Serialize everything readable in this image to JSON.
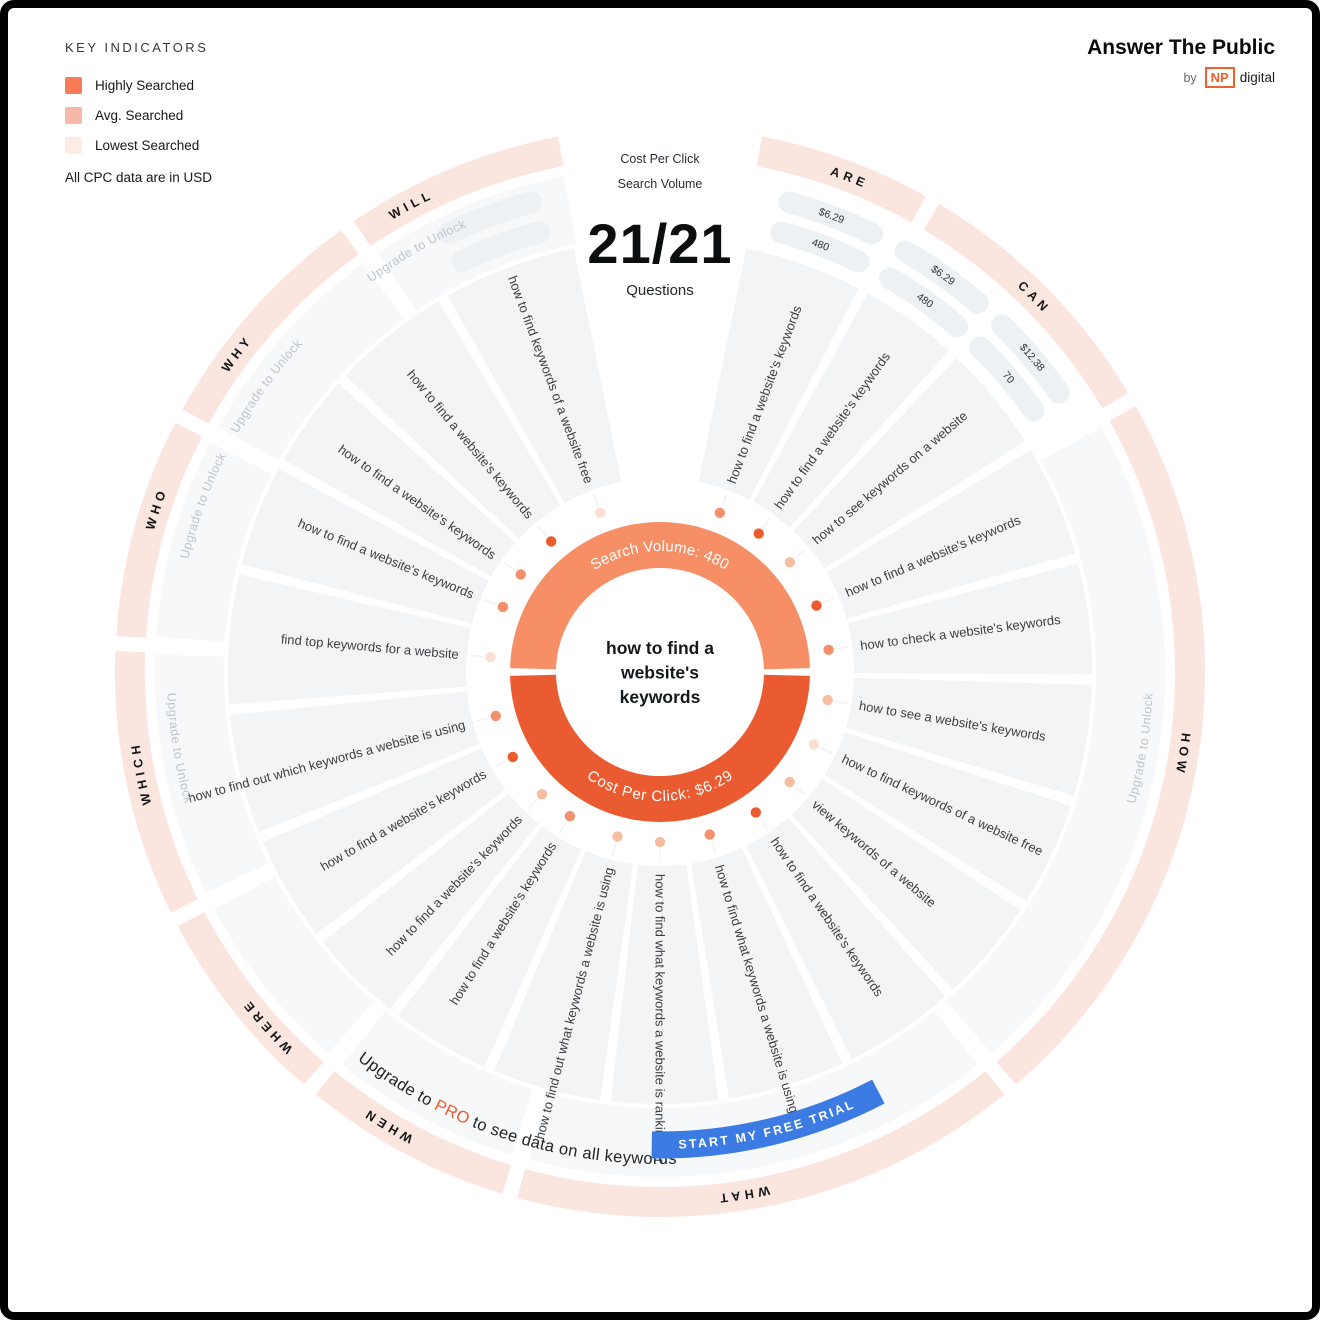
{
  "legend": {
    "title": "KEY INDICATORS",
    "items": [
      {
        "label": "Highly Searched",
        "color": "#f77b54"
      },
      {
        "label": "Avg. Searched",
        "color": "#f5b9a5"
      },
      {
        "label": "Lowest Searched",
        "color": "#fdebe4"
      }
    ],
    "note": "All CPC data are in USD"
  },
  "logo": {
    "brand": "Answer The Public",
    "by": "by",
    "np": "NP",
    "digital": "digital"
  },
  "header": {
    "cpc_label": "Cost Per Click",
    "sv_label": "Search Volume",
    "count": "21/21",
    "count_caption": "Questions"
  },
  "center": {
    "keyword_lines": [
      "how to find a",
      "website's",
      "keywords"
    ],
    "top_arc_text": "Search Volume: 480",
    "bottom_arc_text": "Cost Per Click: $6.29"
  },
  "footer": {
    "upgrade_prefix": "Upgrade to ",
    "upgrade_highlight": "PRO",
    "upgrade_suffix": " to see data on all keywords",
    "cta": "START MY FREE TRIAL"
  },
  "wheel": {
    "ring_color": "#fae5df",
    "wedge_color": "#f3f4f6",
    "zone_color": "#f7f8f9",
    "capsule_color": "#eef1f4",
    "unlock_label": "Upgrade to Unlock",
    "unlock_text_color": "#bac4cd",
    "sector_label_color": "#141414",
    "question_text_color": "#3a3f43",
    "value_text_color": "#2f3437",
    "cta_color": "#3c7be4",
    "pro_color": "#ed5b2e",
    "donut_top_color": "#f68e66",
    "donut_bottom_color": "#eb5b31",
    "tier_colors": {
      "high": "#ec5b2d",
      "avg": "#f4906b",
      "low": "#f7bda2",
      "lowest": "#fcdfd3"
    }
  },
  "chart_data": {
    "type": "table",
    "title": "21/21 Questions",
    "keyword": "how to find a website's keywords",
    "keyword_search_volume": 480,
    "keyword_cpc_usd": 6.29,
    "columns": [
      "question",
      "search_level",
      "cpc",
      "search_volume"
    ],
    "rows": [
      {
        "question": "how to find a website's keywords",
        "angle": 20.6,
        "search_level": "avg",
        "cpc": "$6.29",
        "search_volume": "480"
      },
      {
        "question": "how to find a website's keywords",
        "angle": 35.5,
        "search_level": "high",
        "cpc": "$6.29",
        "search_volume": "480"
      },
      {
        "question": "how to see keywords on a website",
        "angle": 49.8,
        "search_level": "low",
        "cpc": "$12.38",
        "search_volume": "70"
      },
      {
        "question": "how to find a website's keywords",
        "angle": 67,
        "search_level": "high"
      },
      {
        "question": "how to check a website's keywords",
        "angle": 82.5,
        "search_level": "avg"
      },
      {
        "question": "how to see a website's keywords",
        "angle": 99.5,
        "search_level": "low"
      },
      {
        "question": "how to find keywords of a website free",
        "angle": 115.2,
        "search_level": "lowest"
      },
      {
        "question": "view keywords of a website",
        "angle": 130.3,
        "search_level": "low"
      },
      {
        "question": "how to find a website's keywords",
        "angle": 145.7,
        "search_level": "high"
      },
      {
        "question": "how to find what keywords a website is using",
        "angle": 163,
        "search_level": "avg"
      },
      {
        "question": "how to find what keywords a website is ranking for",
        "angle": 180,
        "search_level": "low"
      },
      {
        "question": "how to find out what keywords a website is using",
        "angle": 194.5,
        "search_level": "low"
      },
      {
        "question": "how to find a website's keywords",
        "angle": 212,
        "search_level": "avg"
      },
      {
        "question": "how to find a website's keywords",
        "angle": 224,
        "search_level": "low"
      },
      {
        "question": "how to find a website's keywords",
        "angle": 240,
        "search_level": "high"
      },
      {
        "question": "how to find out which keywords a website is using",
        "angle": 255,
        "search_level": "avg"
      },
      {
        "question": "find top keywords for a website",
        "angle": 275,
        "search_level": "lowest"
      },
      {
        "question": "how to find a website's keywords",
        "angle": 292.5,
        "search_level": "avg"
      },
      {
        "question": "how to find a website's keywords",
        "angle": 305,
        "search_level": "avg"
      },
      {
        "question": "how to find a website's keywords",
        "angle": 320.2,
        "search_level": "high"
      },
      {
        "question": "how to find keywords of a website free",
        "angle": 339.5,
        "search_level": "lowest",
        "locked_bands": true
      }
    ],
    "sectors": [
      {
        "name": "ARE",
        "start": 10,
        "end": 30,
        "label_angle": 21,
        "locked": false,
        "value_zone": true
      },
      {
        "name": "CAN",
        "start": 30,
        "end": 60,
        "label_angle": 45,
        "locked": false,
        "value_zone": true
      },
      {
        "name": "HOW",
        "start": 60,
        "end": 140,
        "label_angle": 99,
        "locked": true,
        "unlock_angle": 99
      },
      {
        "name": "WHAT",
        "start": 140,
        "end": 196,
        "label_angle": 171,
        "locked": false
      },
      {
        "name": "WHEN",
        "start": 196,
        "end": 220,
        "label_angle": 211,
        "locked": false
      },
      {
        "name": "WHERE",
        "start": 220,
        "end": 243,
        "label_angle": 228,
        "locked": false
      },
      {
        "name": "WHICH",
        "start": 243,
        "end": 273,
        "label_angle": 259,
        "locked": true,
        "unlock_angle": 261
      },
      {
        "name": "WHO",
        "start": 273,
        "end": 298,
        "label_angle": 288,
        "locked": true,
        "unlock_angle": 290
      },
      {
        "name": "WHY",
        "start": 298,
        "end": 325,
        "label_angle": 307,
        "locked": true,
        "unlock_angle": 306
      },
      {
        "name": "WILL",
        "start": 325,
        "end": 350,
        "label_angle": 332,
        "locked": true,
        "unlock_angle": 330
      }
    ]
  }
}
